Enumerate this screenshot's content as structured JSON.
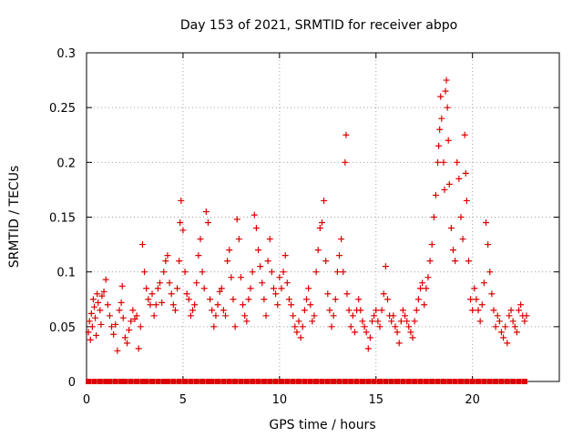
{
  "chart_data": {
    "type": "scatter",
    "title": "Day 153 of 2021, SRMTID for receiver abpo",
    "xlabel": "GPS time / hours",
    "ylabel": "SRMTID / TECUs",
    "xlim": [
      0,
      24.5
    ],
    "ylim": [
      0,
      0.3
    ],
    "xticks": [
      0,
      5,
      10,
      15,
      20
    ],
    "yticks": [
      0,
      0.05,
      0.1,
      0.15,
      0.2,
      0.25,
      0.3
    ],
    "ytick_labels": [
      "0",
      "0.05",
      "0.1",
      "0.15",
      "0.2",
      "0.25",
      "0.3"
    ],
    "grid": true,
    "marker": "+",
    "series_color": "#dd0000",
    "series": [
      {
        "name": "SRMTID",
        "points": [
          [
            0.1,
            0.045
          ],
          [
            0.15,
            0.055
          ],
          [
            0.2,
            0.038
          ],
          [
            0.25,
            0.062
          ],
          [
            0.3,
            0.05
          ],
          [
            0.35,
            0.075
          ],
          [
            0.4,
            0.068
          ],
          [
            0.45,
            0.058
          ],
          [
            0.5,
            0.042
          ],
          [
            0.55,
            0.08
          ],
          [
            0.6,
            0.072
          ],
          [
            0.7,
            0.065
          ],
          [
            0.75,
            0.052
          ],
          [
            0.8,
            0.078
          ],
          [
            0.9,
            0.082
          ],
          [
            1.0,
            0.093
          ],
          [
            1.1,
            0.07
          ],
          [
            1.2,
            0.06
          ],
          [
            1.3,
            0.05
          ],
          [
            1.4,
            0.043
          ],
          [
            1.5,
            0.052
          ],
          [
            1.6,
            0.028
          ],
          [
            1.7,
            0.065
          ],
          [
            1.8,
            0.072
          ],
          [
            1.85,
            0.087
          ],
          [
            1.9,
            0.058
          ],
          [
            2.0,
            0.04
          ],
          [
            2.1,
            0.035
          ],
          [
            2.2,
            0.047
          ],
          [
            2.3,
            0.055
          ],
          [
            2.4,
            0.065
          ],
          [
            2.5,
            0.057
          ],
          [
            2.6,
            0.06
          ],
          [
            2.7,
            0.03
          ],
          [
            2.8,
            0.05
          ],
          [
            2.9,
            0.125
          ],
          [
            3.0,
            0.1
          ],
          [
            3.1,
            0.085
          ],
          [
            3.2,
            0.075
          ],
          [
            3.3,
            0.07
          ],
          [
            3.4,
            0.08
          ],
          [
            3.5,
            0.06
          ],
          [
            3.6,
            0.07
          ],
          [
            3.7,
            0.085
          ],
          [
            3.8,
            0.09
          ],
          [
            3.9,
            0.072
          ],
          [
            4.0,
            0.1
          ],
          [
            4.1,
            0.11
          ],
          [
            4.2,
            0.115
          ],
          [
            4.3,
            0.09
          ],
          [
            4.4,
            0.08
          ],
          [
            4.5,
            0.07
          ],
          [
            4.6,
            0.065
          ],
          [
            4.7,
            0.085
          ],
          [
            4.8,
            0.11
          ],
          [
            4.85,
            0.145
          ],
          [
            4.9,
            0.165
          ],
          [
            5.0,
            0.138
          ],
          [
            5.1,
            0.1
          ],
          [
            5.2,
            0.08
          ],
          [
            5.3,
            0.075
          ],
          [
            5.4,
            0.06
          ],
          [
            5.5,
            0.065
          ],
          [
            5.6,
            0.07
          ],
          [
            5.7,
            0.09
          ],
          [
            5.8,
            0.115
          ],
          [
            5.9,
            0.13
          ],
          [
            6.0,
            0.1
          ],
          [
            6.1,
            0.085
          ],
          [
            6.2,
            0.155
          ],
          [
            6.3,
            0.145
          ],
          [
            6.4,
            0.075
          ],
          [
            6.5,
            0.065
          ],
          [
            6.6,
            0.05
          ],
          [
            6.7,
            0.06
          ],
          [
            6.8,
            0.07
          ],
          [
            6.9,
            0.082
          ],
          [
            7.0,
            0.085
          ],
          [
            7.1,
            0.065
          ],
          [
            7.2,
            0.06
          ],
          [
            7.3,
            0.11
          ],
          [
            7.4,
            0.12
          ],
          [
            7.5,
            0.095
          ],
          [
            7.6,
            0.075
          ],
          [
            7.7,
            0.05
          ],
          [
            7.8,
            0.148
          ],
          [
            7.9,
            0.13
          ],
          [
            8.0,
            0.095
          ],
          [
            8.1,
            0.07
          ],
          [
            8.2,
            0.06
          ],
          [
            8.3,
            0.055
          ],
          [
            8.4,
            0.075
          ],
          [
            8.5,
            0.085
          ],
          [
            8.6,
            0.1
          ],
          [
            8.7,
            0.152
          ],
          [
            8.8,
            0.14
          ],
          [
            8.9,
            0.12
          ],
          [
            9.0,
            0.105
          ],
          [
            9.1,
            0.09
          ],
          [
            9.2,
            0.075
          ],
          [
            9.3,
            0.06
          ],
          [
            9.4,
            0.11
          ],
          [
            9.5,
            0.13
          ],
          [
            9.6,
            0.1
          ],
          [
            9.7,
            0.085
          ],
          [
            9.8,
            0.08
          ],
          [
            9.9,
            0.07
          ],
          [
            10.0,
            0.095
          ],
          [
            10.1,
            0.085
          ],
          [
            10.2,
            0.1
          ],
          [
            10.3,
            0.115
          ],
          [
            10.4,
            0.09
          ],
          [
            10.5,
            0.075
          ],
          [
            10.6,
            0.07
          ],
          [
            10.7,
            0.06
          ],
          [
            10.8,
            0.05
          ],
          [
            10.9,
            0.045
          ],
          [
            11.0,
            0.055
          ],
          [
            11.1,
            0.04
          ],
          [
            11.2,
            0.05
          ],
          [
            11.3,
            0.065
          ],
          [
            11.4,
            0.075
          ],
          [
            11.5,
            0.085
          ],
          [
            11.6,
            0.07
          ],
          [
            11.7,
            0.055
          ],
          [
            11.8,
            0.06
          ],
          [
            11.9,
            0.1
          ],
          [
            12.0,
            0.12
          ],
          [
            12.1,
            0.14
          ],
          [
            12.2,
            0.145
          ],
          [
            12.3,
            0.165
          ],
          [
            12.4,
            0.11
          ],
          [
            12.5,
            0.08
          ],
          [
            12.6,
            0.065
          ],
          [
            12.7,
            0.05
          ],
          [
            12.8,
            0.06
          ],
          [
            12.9,
            0.075
          ],
          [
            13.0,
            0.1
          ],
          [
            13.1,
            0.115
          ],
          [
            13.2,
            0.13
          ],
          [
            13.3,
            0.1
          ],
          [
            13.4,
            0.2
          ],
          [
            13.45,
            0.225
          ],
          [
            13.5,
            0.08
          ],
          [
            13.6,
            0.065
          ],
          [
            13.7,
            0.05
          ],
          [
            13.8,
            0.06
          ],
          [
            13.9,
            0.045
          ],
          [
            14.0,
            0.065
          ],
          [
            14.1,
            0.075
          ],
          [
            14.2,
            0.065
          ],
          [
            14.3,
            0.055
          ],
          [
            14.4,
            0.05
          ],
          [
            14.5,
            0.045
          ],
          [
            14.6,
            0.03
          ],
          [
            14.7,
            0.04
          ],
          [
            14.8,
            0.055
          ],
          [
            14.9,
            0.06
          ],
          [
            15.0,
            0.065
          ],
          [
            15.1,
            0.055
          ],
          [
            15.2,
            0.05
          ],
          [
            15.3,
            0.065
          ],
          [
            15.4,
            0.08
          ],
          [
            15.5,
            0.105
          ],
          [
            15.6,
            0.075
          ],
          [
            15.7,
            0.06
          ],
          [
            15.8,
            0.055
          ],
          [
            15.9,
            0.06
          ],
          [
            16.0,
            0.05
          ],
          [
            16.1,
            0.045
          ],
          [
            16.2,
            0.035
          ],
          [
            16.3,
            0.055
          ],
          [
            16.4,
            0.065
          ],
          [
            16.5,
            0.06
          ],
          [
            16.6,
            0.055
          ],
          [
            16.7,
            0.05
          ],
          [
            16.8,
            0.045
          ],
          [
            16.9,
            0.04
          ],
          [
            17.0,
            0.055
          ],
          [
            17.1,
            0.065
          ],
          [
            17.2,
            0.075
          ],
          [
            17.3,
            0.085
          ],
          [
            17.4,
            0.09
          ],
          [
            17.5,
            0.07
          ],
          [
            17.6,
            0.085
          ],
          [
            17.7,
            0.095
          ],
          [
            17.8,
            0.11
          ],
          [
            17.9,
            0.125
          ],
          [
            18.0,
            0.15
          ],
          [
            18.1,
            0.17
          ],
          [
            18.2,
            0.2
          ],
          [
            18.25,
            0.215
          ],
          [
            18.3,
            0.23
          ],
          [
            18.35,
            0.26
          ],
          [
            18.4,
            0.24
          ],
          [
            18.5,
            0.2
          ],
          [
            18.55,
            0.175
          ],
          [
            18.6,
            0.265
          ],
          [
            18.65,
            0.275
          ],
          [
            18.7,
            0.25
          ],
          [
            18.75,
            0.22
          ],
          [
            18.8,
            0.18
          ],
          [
            18.9,
            0.14
          ],
          [
            19.0,
            0.12
          ],
          [
            19.1,
            0.11
          ],
          [
            19.2,
            0.2
          ],
          [
            19.3,
            0.185
          ],
          [
            19.4,
            0.15
          ],
          [
            19.5,
            0.13
          ],
          [
            19.6,
            0.225
          ],
          [
            19.65,
            0.19
          ],
          [
            19.7,
            0.165
          ],
          [
            19.8,
            0.11
          ],
          [
            19.9,
            0.075
          ],
          [
            20.0,
            0.065
          ],
          [
            20.1,
            0.085
          ],
          [
            20.2,
            0.075
          ],
          [
            20.3,
            0.065
          ],
          [
            20.4,
            0.055
          ],
          [
            20.5,
            0.07
          ],
          [
            20.6,
            0.09
          ],
          [
            20.7,
            0.145
          ],
          [
            20.8,
            0.125
          ],
          [
            20.9,
            0.1
          ],
          [
            21.0,
            0.08
          ],
          [
            21.1,
            0.065
          ],
          [
            21.2,
            0.05
          ],
          [
            21.3,
            0.06
          ],
          [
            21.4,
            0.055
          ],
          [
            21.5,
            0.045
          ],
          [
            21.6,
            0.04
          ],
          [
            21.7,
            0.05
          ],
          [
            21.8,
            0.035
          ],
          [
            21.9,
            0.06
          ],
          [
            22.0,
            0.065
          ],
          [
            22.1,
            0.055
          ],
          [
            22.2,
            0.05
          ],
          [
            22.3,
            0.045
          ],
          [
            22.4,
            0.065
          ],
          [
            22.5,
            0.07
          ],
          [
            22.6,
            0.06
          ],
          [
            22.7,
            0.055
          ],
          [
            22.8,
            0.06
          ]
        ]
      }
    ],
    "zero_markers": {
      "shape": "square",
      "y": 0,
      "x": [
        0.1,
        0.4,
        0.7,
        1.0,
        1.2,
        1.5,
        1.8,
        2.0,
        2.3,
        2.6,
        2.9,
        3.1,
        3.4,
        3.7,
        4.0,
        4.2,
        4.5,
        4.8,
        5.1,
        5.4,
        5.7,
        6.0,
        6.3,
        6.5,
        6.8,
        7.1,
        7.4,
        7.7,
        8.0,
        8.3,
        8.6,
        8.9,
        9.2,
        9.5,
        9.8,
        10.1,
        10.4,
        10.7,
        11.0,
        11.3,
        11.6,
        11.9,
        12.2,
        12.5,
        12.8,
        13.1,
        13.4,
        13.7,
        14.0,
        14.3,
        14.6,
        14.9,
        15.2,
        15.5,
        15.8,
        16.1,
        16.4,
        16.7,
        17.0,
        17.3,
        17.6,
        17.9,
        18.2,
        18.5,
        18.8,
        19.1,
        19.4,
        19.7,
        20.0,
        20.3,
        20.6,
        20.9,
        21.2,
        21.5,
        21.8,
        22.1,
        22.4,
        22.7
      ]
    }
  }
}
